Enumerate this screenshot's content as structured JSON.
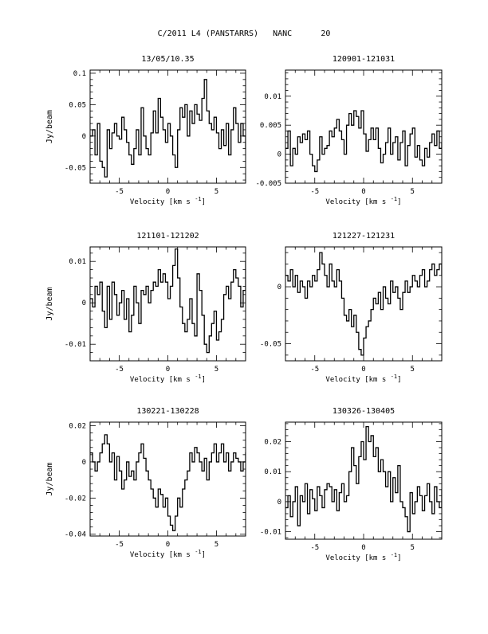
{
  "figure": {
    "title": "C/2011 L4 (PANSTARRS)   NANC      20"
  },
  "chart_data": [
    {
      "type": "line",
      "title": "13/05/10.35",
      "xlabel": "Velocity [km s",
      "xlabel_sup": "-1",
      "xlabel_end": "]",
      "ylabel": "Jy/beam",
      "xlim": [
        -8,
        8
      ],
      "ylim": [
        -0.075,
        0.105
      ],
      "xticks": [
        -5,
        0,
        5
      ],
      "xtick_labels": [
        "-5",
        "0",
        "5"
      ],
      "yticks": [
        -0.05,
        0,
        0.05,
        0.1
      ],
      "ytick_labels": [
        "-0.05",
        "0",
        "0.05",
        "0.1"
      ],
      "series": [
        {
          "step": 0.25,
          "x_start": -8,
          "y": [
            0.0,
            0.01,
            -0.03,
            0.02,
            -0.04,
            -0.05,
            -0.065,
            0.01,
            -0.02,
            0.005,
            0.02,
            0.0,
            -0.005,
            0.03,
            0.01,
            -0.01,
            -0.03,
            -0.045,
            -0.02,
            0.01,
            -0.03,
            0.045,
            0.0,
            -0.02,
            -0.03,
            0.005,
            0.04,
            0.005,
            0.06,
            0.03,
            0.01,
            -0.01,
            0.02,
            0.0,
            -0.03,
            -0.05,
            0.01,
            0.045,
            0.03,
            0.05,
            0.0,
            0.04,
            0.02,
            0.05,
            0.035,
            0.025,
            0.06,
            0.09,
            0.04,
            0.02,
            0.01,
            0.03,
            0.005,
            -0.02,
            0.01,
            -0.015,
            0.02,
            -0.03,
            0.01,
            0.045,
            0.02,
            -0.01,
            0.02,
            0.0,
            -0.02,
            0.01,
            0.0,
            0.02,
            -0.01
          ]
        }
      ]
    },
    {
      "type": "line",
      "title": "120901-121031",
      "xlabel": "Velocity [km s",
      "xlabel_sup": "-1",
      "xlabel_end": "]",
      "ylabel": "",
      "xlim": [
        -8,
        8
      ],
      "ylim": [
        -0.005,
        0.0145
      ],
      "xticks": [
        -5,
        0,
        5
      ],
      "xtick_labels": [
        "-5",
        "0",
        "5"
      ],
      "yticks": [
        -0.005,
        0,
        0.005,
        0.01
      ],
      "ytick_labels": [
        "-0.005",
        "0",
        "0.005",
        "0.01"
      ],
      "series": [
        {
          "step": 0.25,
          "x_start": -8,
          "y": [
            0.001,
            0.004,
            -0.002,
            0.001,
            0.0,
            0.003,
            0.002,
            0.0035,
            0.0025,
            0.004,
            0.0,
            -0.002,
            -0.003,
            -0.001,
            0.003,
            0.0,
            0.001,
            0.0015,
            0.004,
            0.003,
            0.0045,
            0.006,
            0.004,
            0.0025,
            0.0,
            0.005,
            0.007,
            0.005,
            0.0075,
            0.0065,
            0.0045,
            0.0075,
            0.0035,
            0.0005,
            0.0025,
            0.0045,
            0.0025,
            0.0045,
            0.001,
            -0.0015,
            0.0,
            0.002,
            0.0045,
            0.0,
            0.002,
            0.003,
            -0.001,
            0.002,
            0.004,
            -0.002,
            0.0015,
            0.0035,
            0.0045,
            -0.0005,
            0.0015,
            -0.001,
            -0.002,
            0.001,
            -0.0005,
            0.002,
            0.0035,
            0.0015,
            0.004,
            0.001,
            0.002,
            0.0,
            -0.002,
            0.001,
            -0.001
          ]
        }
      ]
    },
    {
      "type": "line",
      "title": "121101-121202",
      "xlabel": "Velocity [km s",
      "xlabel_sup": "-1",
      "xlabel_end": "]",
      "ylabel": "Jy/beam",
      "xlim": [
        -8,
        8
      ],
      "ylim": [
        -0.014,
        0.0135
      ],
      "xticks": [
        -5,
        0,
        5
      ],
      "xtick_labels": [
        "-5",
        "0",
        "5"
      ],
      "yticks": [
        -0.01,
        0,
        0.01
      ],
      "ytick_labels": [
        "-0.01",
        "0",
        "0.01"
      ],
      "series": [
        {
          "step": 0.25,
          "x_start": -8,
          "y": [
            0.001,
            -0.001,
            0.004,
            0.002,
            0.005,
            -0.002,
            -0.006,
            0.004,
            -0.004,
            0.005,
            0.002,
            -0.003,
            0.0,
            0.003,
            -0.004,
            0.001,
            -0.007,
            -0.003,
            0.004,
            0.0,
            -0.005,
            0.003,
            0.002,
            0.004,
            0.0,
            0.003,
            0.005,
            0.004,
            0.008,
            0.005,
            0.007,
            0.005,
            0.001,
            0.004,
            0.009,
            0.013,
            0.006,
            -0.001,
            -0.005,
            -0.007,
            -0.004,
            0.001,
            -0.005,
            -0.008,
            0.007,
            0.003,
            -0.003,
            -0.01,
            -0.012,
            -0.008,
            -0.005,
            -0.002,
            -0.009,
            -0.007,
            -0.004,
            0.002,
            0.004,
            0.001,
            0.005,
            0.008,
            0.006,
            0.004,
            -0.001,
            0.003,
            0.01,
            0.007,
            -0.001,
            0.003,
            0.001
          ]
        }
      ]
    },
    {
      "type": "line",
      "title": "121227-121231",
      "xlabel": "Velocity [km s",
      "xlabel_sup": "-1",
      "xlabel_end": "]",
      "ylabel": "",
      "xlim": [
        -8,
        8
      ],
      "ylim": [
        -0.065,
        0.035
      ],
      "xticks": [
        -5,
        0,
        5
      ],
      "xtick_labels": [
        "-5",
        "0",
        "5"
      ],
      "yticks": [
        -0.05,
        0
      ],
      "ytick_labels": [
        "-0.05",
        "0"
      ],
      "series": [
        {
          "step": 0.25,
          "x_start": -8,
          "y": [
            0.01,
            0.005,
            0.015,
            0.0,
            0.01,
            -0.005,
            0.005,
            0.0,
            -0.01,
            0.005,
            0.0,
            0.01,
            0.005,
            0.015,
            0.03,
            0.02,
            0.01,
            0.0,
            0.02,
            0.005,
            0.0,
            0.015,
            0.005,
            -0.01,
            -0.025,
            -0.03,
            -0.02,
            -0.035,
            -0.025,
            -0.04,
            -0.055,
            -0.06,
            -0.045,
            -0.035,
            -0.03,
            -0.02,
            -0.01,
            -0.015,
            -0.005,
            -0.02,
            0.0,
            -0.01,
            -0.015,
            0.005,
            -0.005,
            0.0,
            -0.01,
            -0.02,
            -0.005,
            0.005,
            -0.005,
            0.0,
            0.01,
            0.005,
            0.0,
            0.01,
            0.015,
            0.0,
            0.005,
            0.015,
            0.02,
            0.01,
            0.015,
            0.02,
            0.01,
            0.025,
            0.015,
            0.02,
            0.025
          ]
        }
      ]
    },
    {
      "type": "line",
      "title": "130221-130228",
      "xlabel": "Velocity [km s",
      "xlabel_sup": "-1",
      "xlabel_end": "]",
      "ylabel": "Jy/beam",
      "xlim": [
        -8,
        8
      ],
      "ylim": [
        -0.041,
        0.022
      ],
      "xticks": [
        -5,
        0,
        5
      ],
      "xtick_labels": [
        "-5",
        "0",
        "5"
      ],
      "yticks": [
        -0.04,
        -0.02,
        0,
        0.02
      ],
      "ytick_labels": [
        "-0.04",
        "-0.02",
        "0",
        "0.02"
      ],
      "series": [
        {
          "step": 0.25,
          "x_start": -8,
          "y": [
            0.005,
            0.0,
            -0.005,
            0.0,
            0.005,
            0.01,
            0.015,
            0.01,
            0.0,
            0.005,
            -0.01,
            0.003,
            -0.005,
            -0.015,
            -0.01,
            0.0,
            -0.008,
            -0.005,
            -0.01,
            0.0,
            0.005,
            0.01,
            0.002,
            -0.005,
            -0.01,
            -0.015,
            -0.02,
            -0.025,
            -0.015,
            -0.018,
            -0.025,
            -0.02,
            -0.03,
            -0.035,
            -0.038,
            -0.03,
            -0.02,
            -0.025,
            -0.015,
            -0.01,
            -0.005,
            0.005,
            0.0,
            0.008,
            0.005,
            0.0,
            -0.005,
            0.002,
            -0.01,
            0.0,
            0.005,
            0.01,
            0.0,
            0.005,
            0.01,
            0.0,
            0.005,
            -0.005,
            0.0,
            0.005,
            0.002,
            0.0,
            -0.005,
            0.0,
            0.005,
            -0.002,
            0.0,
            0.003,
            0.0
          ]
        }
      ]
    },
    {
      "type": "line",
      "title": "130326-130405",
      "xlabel": "Velocity [km s",
      "xlabel_sup": "-1",
      "xlabel_end": "]",
      "ylabel": "",
      "xlim": [
        -8,
        8
      ],
      "ylim": [
        -0.0125,
        0.0265
      ],
      "xticks": [
        -5,
        0,
        5
      ],
      "xtick_labels": [
        "-5",
        "0",
        "5"
      ],
      "yticks": [
        -0.01,
        0,
        0.01,
        0.02
      ],
      "ytick_labels": [
        "-0.01",
        "0",
        "0.01",
        "0.02"
      ],
      "series": [
        {
          "step": 0.25,
          "x_start": -8,
          "y": [
            -0.002,
            0.002,
            -0.005,
            0.0,
            0.005,
            -0.008,
            0.002,
            0.0,
            0.006,
            -0.004,
            0.004,
            0.001,
            -0.003,
            0.005,
            0.002,
            -0.002,
            0.004,
            0.006,
            0.005,
            0.0,
            0.004,
            -0.003,
            0.003,
            0.006,
            0.0,
            0.002,
            0.01,
            0.018,
            0.012,
            0.006,
            0.015,
            0.02,
            0.014,
            0.025,
            0.02,
            0.022,
            0.015,
            0.018,
            0.01,
            0.014,
            0.01,
            0.005,
            0.01,
            0.0,
            0.008,
            0.003,
            0.012,
            0.0,
            -0.002,
            -0.005,
            -0.01,
            0.003,
            -0.004,
            0.0,
            0.005,
            0.002,
            -0.003,
            0.002,
            0.006,
            0.0,
            -0.004,
            0.005,
            0.0,
            -0.002,
            0.004,
            0.0,
            0.002,
            -0.001,
            0.002
          ]
        }
      ]
    }
  ]
}
